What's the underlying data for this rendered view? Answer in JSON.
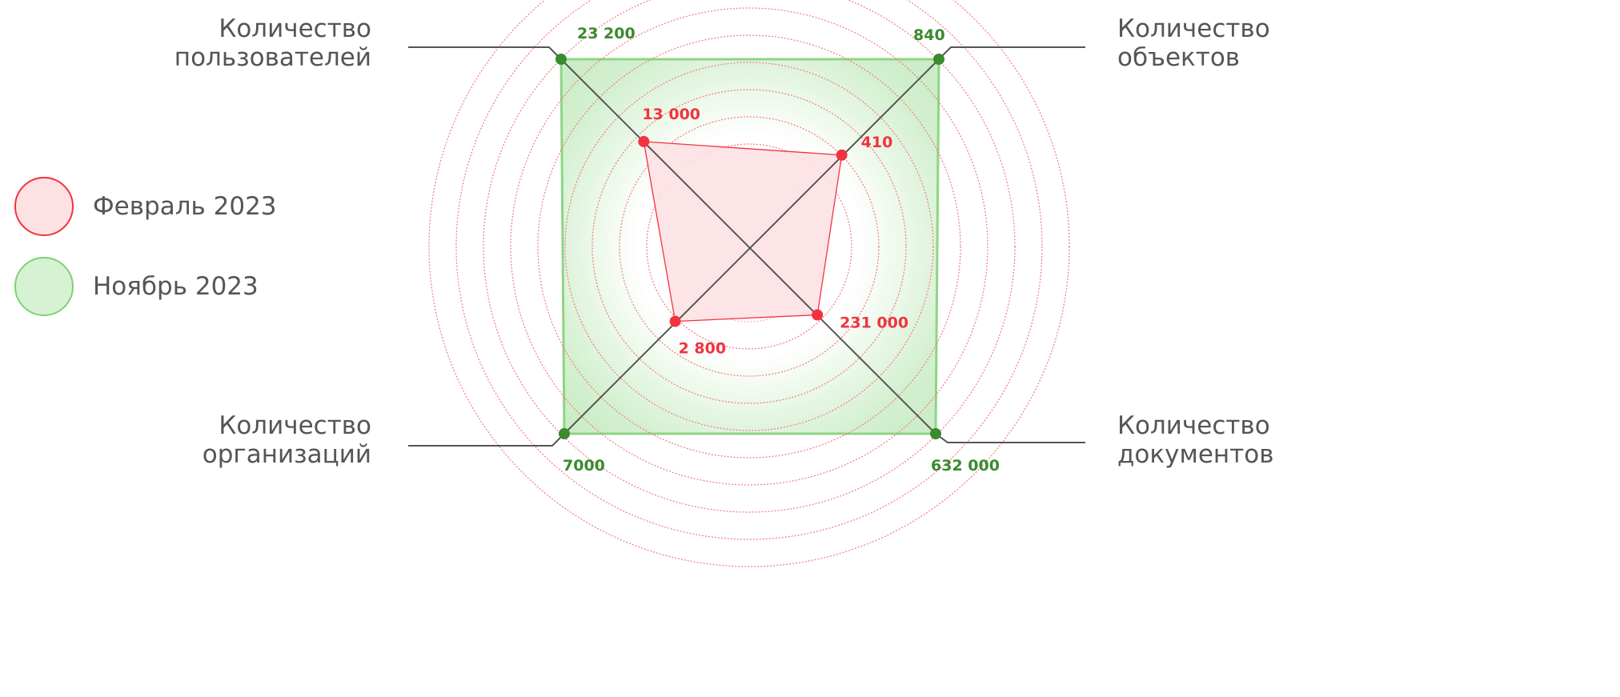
{
  "chart_data": {
    "type": "radar",
    "title": "",
    "axes": [
      {
        "key": "users",
        "label_line1": "Количество",
        "label_line2": "пользователей"
      },
      {
        "key": "objects",
        "label_line1": "Количество",
        "label_line2": "объектов"
      },
      {
        "key": "documents",
        "label_line1": "Количество",
        "label_line2": "документов"
      },
      {
        "key": "organizations",
        "label_line1": "Количество",
        "label_line2": "организаций"
      }
    ],
    "series": [
      {
        "name": "Февраль 2023",
        "color": "#f2333f",
        "fill": "#fde1e3",
        "values": [
          13000,
          410,
          231000,
          2800
        ],
        "value_labels": [
          "13 000",
          "410",
          "231 000",
          "2 800"
        ]
      },
      {
        "name": "Ноябрь 2023",
        "color": "#3a8a2e",
        "fill": "#d6f2d2",
        "values": [
          23200,
          840,
          632000,
          7000
        ],
        "value_labels": [
          "23 200",
          "840",
          "632 000",
          "7000"
        ]
      }
    ],
    "legend_position": "left",
    "grid": "concentric dashed circles"
  }
}
